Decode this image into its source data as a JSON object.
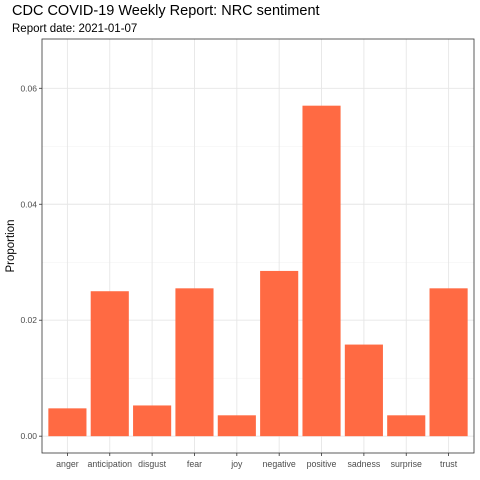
{
  "chart_data": {
    "type": "bar",
    "title": "CDC COVID-19 Weekly Report: NRC sentiment",
    "subtitle": "Report date: 2021-01-07",
    "xlabel": "",
    "ylabel": "Proportion",
    "categories": [
      "anger",
      "anticipation",
      "disgust",
      "fear",
      "joy",
      "negative",
      "positive",
      "sadness",
      "surprise",
      "trust"
    ],
    "values": [
      0.0048,
      0.025,
      0.0053,
      0.0255,
      0.0036,
      0.0285,
      0.057,
      0.0158,
      0.0036,
      0.0255
    ],
    "ylim": [
      -0.0029,
      0.0685
    ],
    "yticks": [
      0.0,
      0.02,
      0.04,
      0.06
    ],
    "ytick_labels": [
      "0.00",
      "0.02",
      "0.04",
      "0.06"
    ],
    "grid": true,
    "bar_color": "#FF6A43"
  }
}
